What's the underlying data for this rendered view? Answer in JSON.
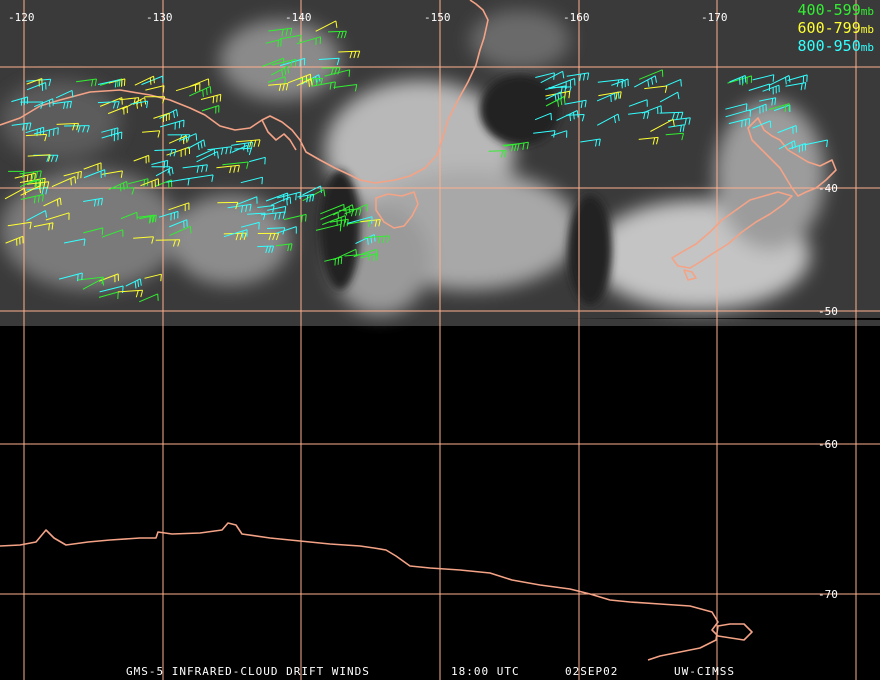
{
  "legend": [
    {
      "range": "400-599",
      "unit": "mb",
      "color": "#33ee33"
    },
    {
      "range": "600-799",
      "unit": "mb",
      "color": "#ffff33"
    },
    {
      "range": "800-950",
      "unit": "mb",
      "color": "#33ffff"
    }
  ],
  "footer": {
    "product": "GMS-5 INFRARED-CLOUD DRIFT WINDS",
    "time": "18:00 UTC",
    "date": "02SEP02",
    "credit": "UW-CIMSS"
  },
  "grid": {
    "longitudes": [
      -120,
      -130,
      -140,
      -150,
      -160,
      -170
    ],
    "latitudes": [
      -40,
      -50,
      -60,
      -70
    ],
    "color": "#ffb090"
  },
  "colors": {
    "coastline": "#f4a386",
    "background": "#000000",
    "cloud": "#c8c8c8"
  }
}
